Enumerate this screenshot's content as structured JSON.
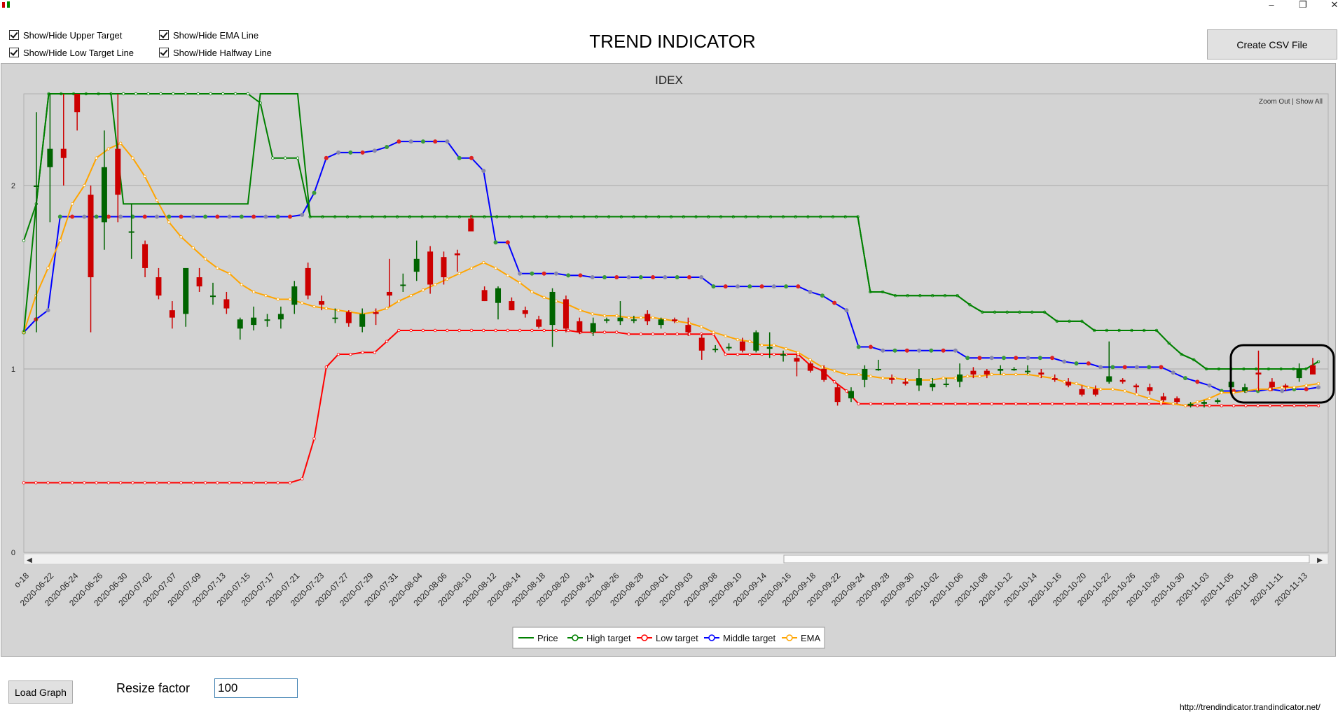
{
  "window": {
    "minimize_icon": "minimize-icon",
    "restore_icon": "restore-icon",
    "close_icon": "close-icon"
  },
  "toggles": {
    "upper_target": "Show/Hide Upper Target",
    "low_target": "Show/Hide Low Target Line",
    "ema_line": "Show/Hide EMA Line",
    "halfway_line": "Show/Hide Halfway Line"
  },
  "app_title": "TREND INDICATOR",
  "create_csv_label": "Create CSV File",
  "zoom_links": "Zoom Out | Show All",
  "load_graph_label": "Load Graph",
  "resize_label": "Resize factor",
  "resize_value": "100",
  "footer_url": "http://trendindicator.trandindicator.net/",
  "colors": {
    "price": "#008000",
    "high_target": "#008000",
    "low_target": "#ff0000",
    "middle_target": "#0000ff",
    "ema": "#ffa500",
    "candle_up": "#006400",
    "candle_down": "#cc0000",
    "plot_bg": "#d3d3d3"
  },
  "chart_data": {
    "type": "line",
    "title": "IDEX",
    "ylim": [
      0,
      2.5
    ],
    "y_ticks": [
      "0",
      "1",
      "2"
    ],
    "grid": true,
    "legend_position": "bottom-center",
    "legend": [
      "Price",
      "High target",
      "Low target",
      "Middle target",
      "EMA"
    ],
    "x_tick_labels": [
      "o-18",
      "2020-06-22",
      "2020-06-24",
      "2020-06-26",
      "2020-06-30",
      "2020-07-02",
      "2020-07-07",
      "2020-07-09",
      "2020-07-13",
      "2020-07-15",
      "2020-07-17",
      "2020-07-21",
      "2020-07-23",
      "2020-07-27",
      "2020-07-29",
      "2020-07-31",
      "2020-08-04",
      "2020-08-06",
      "2020-08-10",
      "2020-08-12",
      "2020-08-14",
      "2020-08-18",
      "2020-08-20",
      "2020-08-24",
      "2020-08-26",
      "2020-08-28",
      "2020-09-01",
      "2020-09-03",
      "2020-09-08",
      "2020-09-10",
      "2020-09-14",
      "2020-09-16",
      "2020-09-18",
      "2020-09-22",
      "2020-09-24",
      "2020-09-28",
      "2020-09-30",
      "2020-10-02",
      "2020-10-06",
      "2020-10-08",
      "2020-10-12",
      "2020-10-14",
      "2020-10-16",
      "2020-10-20",
      "2020-10-22",
      "2020-10-26",
      "2020-10-28",
      "2020-10-30",
      "2020-11-03",
      "2020-11-05",
      "2020-11-09",
      "2020-11-11",
      "2020-11-13"
    ],
    "series": [
      {
        "name": "High target",
        "values": [
          1.7,
          1.9,
          2.6,
          2.6,
          2.6,
          2.6,
          2.6,
          2.6,
          2.6,
          2.6,
          2.6,
          2.6,
          2.6,
          2.6,
          2.6,
          2.6,
          2.6,
          2.6,
          2.6,
          2.45,
          2.15,
          2.15,
          2.15,
          1.83,
          1.83,
          1.83,
          1.83,
          1.83,
          1.83,
          1.83,
          1.83,
          1.83,
          1.83,
          1.83,
          1.83,
          1.83,
          1.83,
          1.83,
          1.83,
          1.83,
          1.83,
          1.83,
          1.83,
          1.83,
          1.83,
          1.83,
          1.83,
          1.83,
          1.83,
          1.83,
          1.83,
          1.83,
          1.83,
          1.83,
          1.83,
          1.83,
          1.83,
          1.83,
          1.83,
          1.83,
          1.83,
          1.83,
          1.83,
          1.83,
          1.83,
          1.83,
          1.83,
          1.83,
          1.42,
          1.42,
          1.4,
          1.4,
          1.4,
          1.4,
          1.4,
          1.4,
          1.35,
          1.31,
          1.31,
          1.31,
          1.31,
          1.31,
          1.31,
          1.26,
          1.26,
          1.26,
          1.21,
          1.21,
          1.21,
          1.21,
          1.21,
          1.21,
          1.14,
          1.08,
          1.05,
          1.0,
          1.0,
          1.0,
          1.0,
          1.0,
          1.0,
          1.0,
          1.0,
          1.0,
          1.04
        ]
      },
      {
        "name": "Middle target",
        "values": [
          1.2,
          1.27,
          1.32,
          1.83,
          1.83,
          1.83,
          1.83,
          1.83,
          1.83,
          1.83,
          1.83,
          1.83,
          1.83,
          1.83,
          1.83,
          1.83,
          1.83,
          1.83,
          1.83,
          1.83,
          1.83,
          1.83,
          1.83,
          1.84,
          1.96,
          2.15,
          2.18,
          2.18,
          2.18,
          2.19,
          2.21,
          2.24,
          2.24,
          2.24,
          2.24,
          2.24,
          2.15,
          2.15,
          2.08,
          1.69,
          1.69,
          1.52,
          1.52,
          1.52,
          1.52,
          1.51,
          1.51,
          1.5,
          1.5,
          1.5,
          1.5,
          1.5,
          1.5,
          1.5,
          1.5,
          1.5,
          1.5,
          1.45,
          1.45,
          1.45,
          1.45,
          1.45,
          1.45,
          1.45,
          1.45,
          1.42,
          1.4,
          1.36,
          1.32,
          1.12,
          1.12,
          1.1,
          1.1,
          1.1,
          1.1,
          1.1,
          1.1,
          1.1,
          1.06,
          1.06,
          1.06,
          1.06,
          1.06,
          1.06,
          1.06,
          1.06,
          1.04,
          1.03,
          1.03,
          1.01,
          1.01,
          1.01,
          1.01,
          1.01,
          1.01,
          0.98,
          0.95,
          0.93,
          0.91,
          0.88,
          0.88,
          0.88,
          0.88,
          0.89,
          0.88,
          0.89,
          0.89,
          0.9
        ]
      },
      {
        "name": "Low target",
        "values": [
          0.38,
          0.38,
          0.38,
          0.38,
          0.38,
          0.38,
          0.38,
          0.38,
          0.38,
          0.38,
          0.38,
          0.38,
          0.38,
          0.38,
          0.38,
          0.38,
          0.38,
          0.38,
          0.38,
          0.38,
          0.38,
          0.38,
          0.38,
          0.4,
          0.62,
          1.01,
          1.08,
          1.08,
          1.09,
          1.09,
          1.15,
          1.21,
          1.21,
          1.21,
          1.21,
          1.21,
          1.21,
          1.21,
          1.21,
          1.21,
          1.21,
          1.21,
          1.21,
          1.21,
          1.21,
          1.21,
          1.2,
          1.2,
          1.2,
          1.2,
          1.19,
          1.19,
          1.19,
          1.19,
          1.19,
          1.19,
          1.19,
          1.19,
          1.08,
          1.08,
          1.08,
          1.08,
          1.08,
          1.08,
          1.08,
          1.02,
          0.99,
          0.93,
          0.88,
          0.81,
          0.81,
          0.81,
          0.81,
          0.81,
          0.81,
          0.81,
          0.81,
          0.81,
          0.81,
          0.81,
          0.81,
          0.81,
          0.81,
          0.81,
          0.81,
          0.81,
          0.81,
          0.81,
          0.81,
          0.81,
          0.81,
          0.81,
          0.81,
          0.81,
          0.81,
          0.81,
          0.8,
          0.8,
          0.8,
          0.8,
          0.8,
          0.8,
          0.8,
          0.8,
          0.8,
          0.8,
          0.8,
          0.8
        ]
      },
      {
        "name": "EMA",
        "values": [
          1.2,
          1.4,
          1.55,
          1.7,
          1.9,
          2.0,
          2.15,
          2.2,
          2.23,
          2.15,
          2.05,
          1.92,
          1.8,
          1.72,
          1.66,
          1.6,
          1.55,
          1.52,
          1.46,
          1.42,
          1.4,
          1.38,
          1.38,
          1.36,
          1.34,
          1.33,
          1.32,
          1.31,
          1.3,
          1.31,
          1.33,
          1.37,
          1.4,
          1.43,
          1.46,
          1.49,
          1.52,
          1.55,
          1.58,
          1.55,
          1.51,
          1.47,
          1.42,
          1.39,
          1.37,
          1.35,
          1.32,
          1.3,
          1.29,
          1.29,
          1.28,
          1.28,
          1.28,
          1.27,
          1.26,
          1.25,
          1.23,
          1.2,
          1.18,
          1.16,
          1.15,
          1.13,
          1.13,
          1.11,
          1.09,
          1.05,
          1.01,
          0.99,
          0.97,
          0.97,
          0.96,
          0.95,
          0.95,
          0.94,
          0.94,
          0.94,
          0.95,
          0.95,
          0.96,
          0.96,
          0.97,
          0.97,
          0.97,
          0.97,
          0.96,
          0.95,
          0.93,
          0.92,
          0.9,
          0.89,
          0.89,
          0.88,
          0.86,
          0.84,
          0.82,
          0.81,
          0.8,
          0.82,
          0.84,
          0.87,
          0.87,
          0.88,
          0.89,
          0.89,
          0.9,
          0.9,
          0.91,
          0.92
        ]
      },
      {
        "name": "Price",
        "values": [
          1.2,
          1.9,
          2.6,
          2.6,
          2.6,
          2.6,
          2.6,
          2.6,
          1.9,
          1.9,
          1.9,
          1.9,
          1.9,
          1.9,
          1.9,
          1.9,
          1.9,
          1.9,
          1.9,
          2.6,
          2.6,
          2.6,
          2.6,
          1.83,
          1.83,
          1.83,
          1.83,
          1.83,
          1.83,
          1.83,
          1.83,
          1.83,
          1.83,
          1.83,
          1.83,
          1.83,
          1.83,
          1.83,
          1.83,
          1.83,
          1.83,
          1.83,
          1.83,
          1.83,
          1.83,
          1.83,
          1.83,
          1.83,
          1.83,
          1.83,
          1.83,
          1.83,
          1.83,
          1.83,
          1.83,
          1.83,
          1.83,
          1.83,
          1.83,
          1.83,
          1.83,
          1.83,
          1.83,
          1.83,
          1.83,
          1.83,
          1.83,
          1.83,
          1.42,
          1.42,
          1.4,
          1.4,
          1.4,
          1.4,
          1.4,
          1.4,
          1.35,
          1.31,
          1.31,
          1.31,
          1.31,
          1.31,
          1.31,
          1.26,
          1.26,
          1.26,
          1.21,
          1.21,
          1.21,
          1.21,
          1.21,
          1.21,
          1.14,
          1.08,
          1.05,
          1.0,
          1.0,
          1.0,
          1.0,
          1.0,
          1.0,
          1.0,
          1.0,
          1.0,
          1.04
        ]
      }
    ],
    "candles": [
      [
        2.0,
        2.4,
        1.2,
        2.0
      ],
      [
        2.1,
        2.6,
        1.8,
        2.2
      ],
      [
        2.2,
        2.5,
        2.0,
        2.15
      ],
      [
        2.6,
        2.6,
        2.3,
        2.4
      ],
      [
        1.95,
        2.0,
        1.2,
        1.5
      ],
      [
        1.8,
        2.3,
        1.65,
        2.1
      ],
      [
        2.2,
        2.5,
        1.8,
        1.95
      ],
      [
        1.75,
        1.9,
        1.6,
        1.75
      ],
      [
        1.68,
        1.7,
        1.5,
        1.55
      ],
      [
        1.5,
        1.55,
        1.38,
        1.4
      ],
      [
        1.32,
        1.37,
        1.22,
        1.28
      ],
      [
        1.3,
        1.53,
        1.23,
        1.55
      ],
      [
        1.5,
        1.55,
        1.42,
        1.45
      ],
      [
        1.4,
        1.47,
        1.35,
        1.4
      ],
      [
        1.38,
        1.42,
        1.3,
        1.33
      ],
      [
        1.22,
        1.28,
        1.16,
        1.27
      ],
      [
        1.24,
        1.34,
        1.21,
        1.28
      ],
      [
        1.27,
        1.3,
        1.23,
        1.27
      ],
      [
        1.27,
        1.34,
        1.22,
        1.3
      ],
      [
        1.35,
        1.48,
        1.3,
        1.45
      ],
      [
        1.55,
        1.58,
        1.38,
        1.4
      ],
      [
        1.37,
        1.4,
        1.32,
        1.35
      ],
      [
        1.28,
        1.33,
        1.25,
        1.28
      ],
      [
        1.31,
        1.32,
        1.23,
        1.25
      ],
      [
        1.23,
        1.33,
        1.2,
        1.3
      ],
      [
        1.31,
        1.33,
        1.24,
        1.3
      ],
      [
        1.42,
        1.6,
        1.34,
        1.4
      ],
      [
        1.46,
        1.52,
        1.42,
        1.46
      ],
      [
        1.53,
        1.7,
        1.48,
        1.6
      ],
      [
        1.64,
        1.67,
        1.41,
        1.46
      ],
      [
        1.61,
        1.64,
        1.46,
        1.5
      ],
      [
        1.63,
        1.65,
        1.53,
        1.62
      ],
      [
        1.82,
        1.84,
        1.75,
        1.75
      ],
      [
        1.43,
        1.45,
        1.37,
        1.37
      ],
      [
        1.36,
        1.45,
        1.27,
        1.44
      ],
      [
        1.37,
        1.39,
        1.32,
        1.32
      ],
      [
        1.32,
        1.34,
        1.28,
        1.3
      ],
      [
        1.27,
        1.29,
        1.22,
        1.23
      ],
      [
        1.24,
        1.44,
        1.12,
        1.42
      ],
      [
        1.38,
        1.4,
        1.2,
        1.22
      ],
      [
        1.26,
        1.28,
        1.19,
        1.2
      ],
      [
        1.2,
        1.28,
        1.18,
        1.25
      ],
      [
        1.27,
        1.28,
        1.25,
        1.27
      ],
      [
        1.26,
        1.37,
        1.24,
        1.28
      ],
      [
        1.27,
        1.29,
        1.25,
        1.27
      ],
      [
        1.3,
        1.32,
        1.24,
        1.26
      ],
      [
        1.24,
        1.28,
        1.22,
        1.27
      ],
      [
        1.27,
        1.28,
        1.25,
        1.26
      ],
      [
        1.24,
        1.28,
        1.18,
        1.2
      ],
      [
        1.17,
        1.19,
        1.05,
        1.1
      ],
      [
        1.11,
        1.13,
        1.09,
        1.11
      ],
      [
        1.12,
        1.14,
        1.1,
        1.12
      ],
      [
        1.15,
        1.17,
        1.09,
        1.1
      ],
      [
        1.1,
        1.21,
        1.09,
        1.2
      ],
      [
        1.11,
        1.2,
        1.06,
        1.12
      ],
      [
        1.08,
        1.1,
        1.04,
        1.08
      ],
      [
        1.06,
        1.08,
        0.96,
        1.04
      ],
      [
        1.03,
        1.04,
        0.98,
        0.99
      ],
      [
        1.0,
        1.02,
        0.93,
        0.94
      ],
      [
        0.9,
        0.92,
        0.8,
        0.82
      ],
      [
        0.84,
        0.9,
        0.82,
        0.88
      ],
      [
        0.94,
        1.02,
        0.9,
        1.0
      ],
      [
        1.0,
        1.05,
        0.99,
        1.0
      ],
      [
        0.95,
        0.97,
        0.92,
        0.94
      ],
      [
        0.93,
        0.95,
        0.91,
        0.92
      ],
      [
        0.91,
        1.0,
        0.88,
        0.95
      ],
      [
        0.9,
        0.95,
        0.88,
        0.92
      ],
      [
        0.92,
        0.95,
        0.9,
        0.92
      ],
      [
        0.93,
        1.03,
        0.9,
        0.97
      ],
      [
        0.99,
        1.01,
        0.95,
        0.97
      ],
      [
        0.99,
        1.0,
        0.95,
        0.97
      ],
      [
        0.99,
        1.02,
        0.97,
        1.0
      ],
      [
        1.0,
        1.01,
        0.99,
        1.0
      ],
      [
        0.99,
        1.02,
        0.97,
        0.99
      ],
      [
        0.98,
        1.0,
        0.95,
        0.97
      ],
      [
        0.95,
        0.97,
        0.93,
        0.94
      ],
      [
        0.93,
        0.95,
        0.9,
        0.91
      ],
      [
        0.89,
        0.91,
        0.85,
        0.86
      ],
      [
        0.89,
        0.91,
        0.85,
        0.86
      ],
      [
        0.93,
        1.15,
        0.92,
        0.96
      ],
      [
        0.94,
        0.95,
        0.92,
        0.93
      ],
      [
        0.91,
        0.92,
        0.87,
        0.9
      ],
      [
        0.9,
        0.92,
        0.86,
        0.88
      ],
      [
        0.85,
        0.87,
        0.82,
        0.83
      ],
      [
        0.84,
        0.85,
        0.81,
        0.82
      ],
      [
        0.8,
        0.82,
        0.79,
        0.81
      ],
      [
        0.81,
        0.83,
        0.79,
        0.82
      ],
      [
        0.82,
        0.84,
        0.81,
        0.83
      ],
      [
        0.9,
        0.95,
        0.88,
        0.93
      ],
      [
        0.88,
        0.92,
        0.87,
        0.9
      ],
      [
        0.98,
        1.1,
        0.88,
        0.97
      ],
      [
        0.93,
        0.95,
        0.88,
        0.9
      ],
      [
        0.91,
        0.92,
        0.88,
        0.9
      ],
      [
        0.95,
        1.03,
        0.93,
        1.0
      ],
      [
        1.02,
        1.06,
        0.98,
        0.97
      ]
    ],
    "annotation": "highlight box around 2020-11-05 to 2020-11-13"
  }
}
